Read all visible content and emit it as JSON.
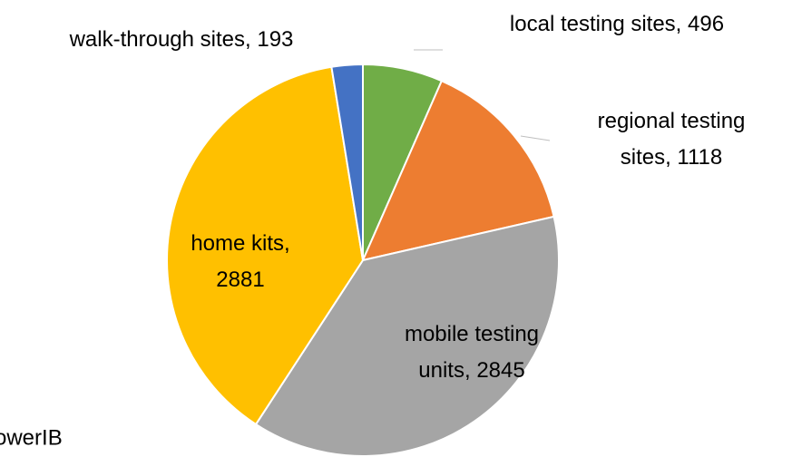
{
  "chart_data": {
    "type": "pie",
    "categories": [
      "local testing sites",
      "regional testing sites",
      "mobile testing units",
      "home kits",
      "walk-through sites"
    ],
    "values": [
      496,
      1118,
      2845,
      2881,
      193
    ],
    "value_labels": [
      "local testing sites, 496",
      "regional testing sites, 1118",
      "mobile testing units, 2845",
      "home kits, 2881",
      "walk-through sites, 193"
    ],
    "colors": [
      "#70ad47",
      "#ed7d31",
      "#a5a5a5",
      "#ffc000",
      "#4472c4"
    ],
    "annotation": "owerIB"
  }
}
